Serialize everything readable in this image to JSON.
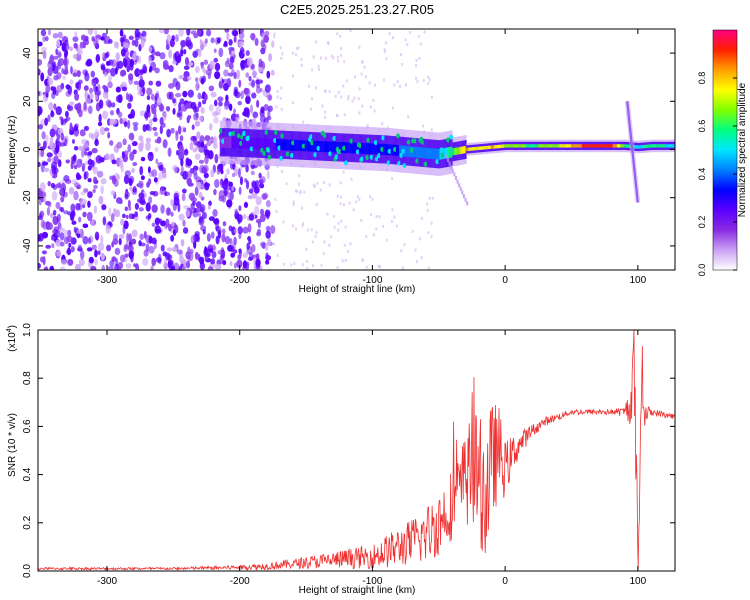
{
  "figure": {
    "title": "C2E5.2025.251.23.27.R05"
  },
  "chart_data": [
    {
      "type": "heatmap",
      "xlabel": "Height of straight line (km)",
      "ylabel": "Frequency (Hz)",
      "xlim": [
        -352,
        128
      ],
      "ylim": [
        -50,
        50
      ],
      "xticks": [
        -300,
        -200,
        -100,
        0,
        100
      ],
      "yticks": [
        -40,
        -20,
        0,
        20,
        40
      ],
      "colorbar": {
        "label": "Normalized spectral amplitude",
        "range": [
          0,
          1
        ],
        "ticks": [
          "0.0",
          "0.2",
          "0.4",
          "0.6",
          "0.8"
        ],
        "colors": [
          "#ffffff",
          "#c9a0f5",
          "#8a2be2",
          "#5a00ff",
          "#0000ff",
          "#0080ff",
          "#00e5ff",
          "#00ff80",
          "#80ff00",
          "#ffff00",
          "#ffa000",
          "#ff2000",
          "#ff0080"
        ]
      },
      "trace": {
        "x": [
          -210,
          -190,
          -170,
          -150,
          -130,
          -110,
          -90,
          -70,
          -50,
          -40,
          -30,
          -20,
          -10,
          0,
          20,
          40,
          60,
          80,
          90,
          100,
          110,
          128
        ],
        "y": [
          3,
          2.5,
          2,
          1.5,
          1,
          0.5,
          0,
          -1,
          -2,
          -1,
          0,
          0.5,
          1,
          1.5,
          1.5,
          1.5,
          1.5,
          1.5,
          1.5,
          1,
          1.5,
          1.5
        ],
        "amplitude": [
          0.2,
          0.25,
          0.3,
          0.3,
          0.3,
          0.3,
          0.35,
          0.4,
          0.45,
          0.6,
          0.8,
          0.75,
          0.8,
          0.7,
          0.6,
          0.7,
          0.9,
          0.9,
          0.6,
          0.5,
          0.6,
          0.5
        ]
      },
      "noise_region_x": [
        -352,
        -175
      ],
      "burst_x": 95
    },
    {
      "type": "line",
      "xlabel": "Height of straight line (km)",
      "ylabel": "SNR (10 * v/v)",
      "scale_label": "(x10",
      "scale_exp": "4",
      "scale_close": ")",
      "xlim": [
        -352,
        128
      ],
      "ylim": [
        0,
        1
      ],
      "xticks": [
        -300,
        -200,
        -100,
        0,
        100
      ],
      "yticks": [
        "0.0",
        "0.2",
        "0.4",
        "0.6",
        "0.8",
        "1.0"
      ],
      "color": "#ee3030",
      "series": [
        {
          "x": [
            -352,
            -300,
            -250,
            -200,
            -180,
            -160,
            -140,
            -120,
            -100,
            -90,
            -80,
            -70,
            -60,
            -50,
            -40,
            -35,
            -30,
            -25,
            -20,
            -15,
            -10,
            -5,
            0,
            5,
            10,
            15,
            20,
            25,
            30,
            35,
            40,
            50,
            60,
            70,
            80,
            90,
            95,
            97,
            100,
            103,
            105,
            110,
            128
          ],
          "y": [
            0.01,
            0.01,
            0.01,
            0.015,
            0.02,
            0.03,
            0.04,
            0.05,
            0.06,
            0.08,
            0.1,
            0.12,
            0.15,
            0.2,
            0.28,
            0.32,
            0.38,
            0.42,
            0.4,
            0.3,
            0.45,
            0.5,
            0.42,
            0.48,
            0.52,
            0.55,
            0.58,
            0.6,
            0.62,
            0.63,
            0.64,
            0.66,
            0.66,
            0.66,
            0.66,
            0.66,
            0.7,
            0.9,
            0.05,
            0.85,
            0.65,
            0.66,
            0.64
          ],
          "noise": [
            0.005,
            0.005,
            0.005,
            0.01,
            0.015,
            0.02,
            0.03,
            0.04,
            0.05,
            0.07,
            0.08,
            0.1,
            0.12,
            0.14,
            0.15,
            0.16,
            0.2,
            0.25,
            0.25,
            0.3,
            0.25,
            0.2,
            0.12,
            0.08,
            0.06,
            0.04,
            0.03,
            0.02,
            0.02,
            0.015,
            0.015,
            0.012,
            0.012,
            0.012,
            0.012,
            0.02,
            0.1,
            0.15,
            0.2,
            0.15,
            0.05,
            0.015,
            0.012
          ]
        }
      ]
    }
  ]
}
